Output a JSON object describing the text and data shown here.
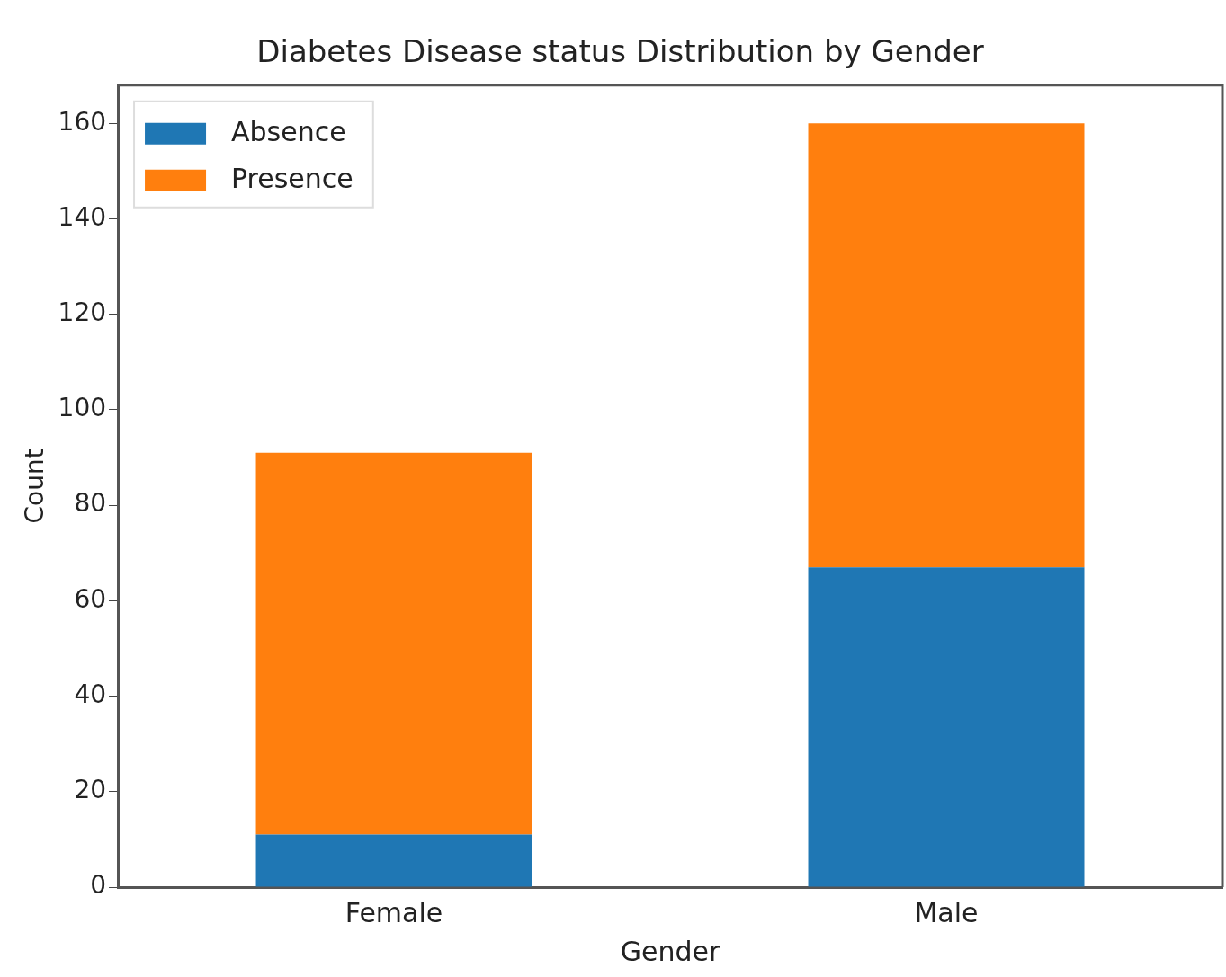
{
  "chart_data": {
    "type": "bar",
    "title": "Diabetes Disease status Distribution by Gender",
    "xlabel": "Gender",
    "ylabel": "Count",
    "categories": [
      "Female",
      "Male"
    ],
    "stacked": true,
    "series": [
      {
        "name": "Absence",
        "color": "#1f77b4",
        "values": [
          11,
          67
        ]
      },
      {
        "name": "Presence",
        "color": "#ff7f0e",
        "values": [
          80,
          93
        ]
      }
    ],
    "ylim": [
      0,
      168
    ],
    "yticks": [
      0,
      20,
      40,
      60,
      80,
      100,
      120,
      140,
      160
    ],
    "grid": false,
    "legend": "top left"
  }
}
